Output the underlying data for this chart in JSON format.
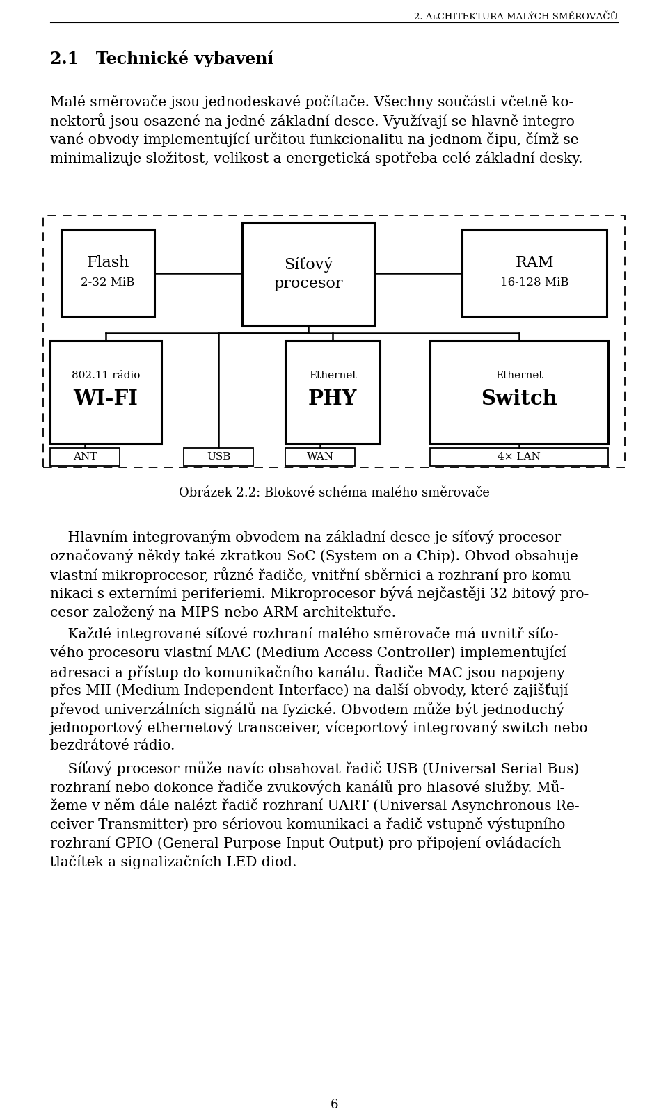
{
  "page_title": "2. Architektura malých směrovаčů",
  "section_title": "2.1   Technické vybavení",
  "para1_lines": [
    "Malé směrovаče jsou jednodeskavé počítače. Všechny součásti včetně ko-",
    "nektorů jsou osazené na jedné základní desce. Využívají se hlavně integro-",
    "vané obvody implementující určitou funkcionalitu na jednom čipu, čímž se",
    "minimalizuje složitost, velikost a energetická spotřeba celé základní desky."
  ],
  "fig_caption": "Obrázek 2.2: Blokové schéma malého směrovаče",
  "para2_lines": [
    "    Hlavním integrovaným obvodem na základní desce je síťový procesor",
    "označovaný někdy také zkratkou SoC (System on a Chip). Obvod obsahuje",
    "vlastní mikroprocesor, různé řadiče, vnitřní sběrnici a rozhraní pro komu-",
    "nikaci s externími periferiemi. Mikroprocesor bývá nejčastěji 32 bitový pro-",
    "cesor založený na MIPS nebo ARM architektuře."
  ],
  "para3_lines": [
    "    Každé integrované síťové rozhraní malého směrovаče má uvnitř síťo-",
    "vého procesoru vlastní MAC (Medium Access Controller) implementující",
    "adresaci a přístup do komunikačního kanálu. Řadiče MAC jsou napojeny",
    "přes MII (Medium Independent Interface) na další obvody, které zajišťují",
    "převod univerzálních signálů na fyzické. Obvodem může být jednoduchý",
    "jednoportový ethernetový transceiver, víceportový integrovaný switch nebo",
    "bezdrátové rádio."
  ],
  "para4_lines": [
    "    Síťový procesor může navíc obsahovat řadič USB (Universal Serial Bus)",
    "rozhraní nebo dokonce řadiče zvukových kanálů pro hlasové služby. Mů-",
    "žeme v něm dále nalézt řadič rozhraní UART (Universal Asynchronous Re-",
    "ceiver Transmitter) pro sériovou komunikaci a řadič vstupně výstupního",
    "rozhraní GPIO (General Purpose Input Output) pro připojení ovládacích",
    "tlačítek a signalizačních LED diod."
  ],
  "page_number": "6",
  "bg_color": "#ffffff",
  "text_color": "#000000"
}
